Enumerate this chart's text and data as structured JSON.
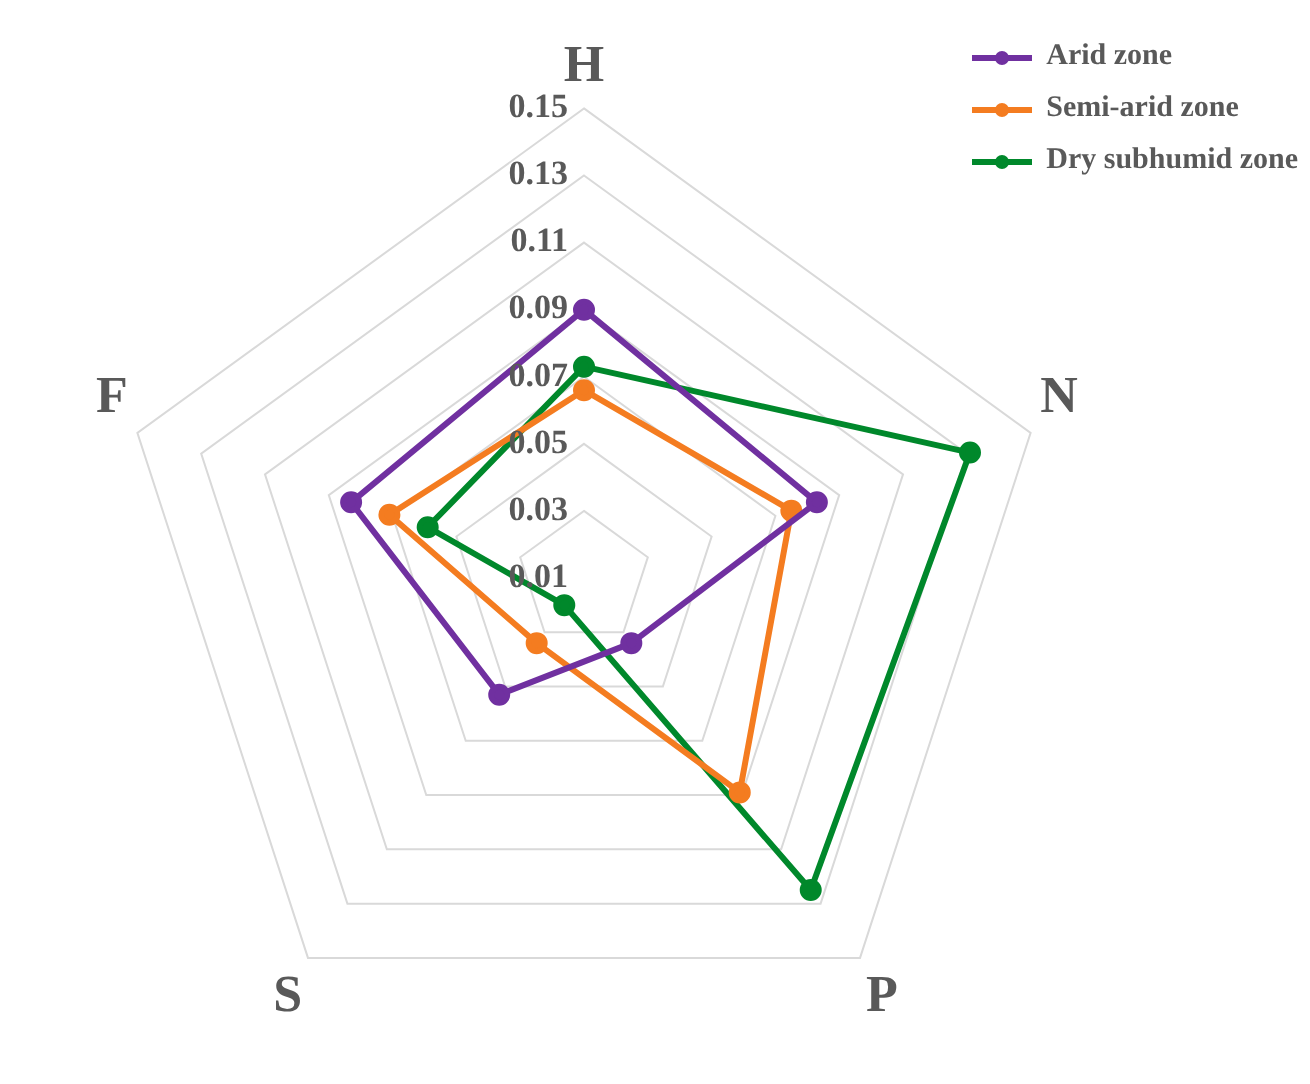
{
  "chart_data": {
    "type": "radar",
    "categories": [
      "H",
      "N",
      "P",
      "S",
      "F"
    ],
    "series": [
      {
        "name": "Arid zone",
        "color": "#7030a0",
        "values": [
          0.09,
          0.083,
          0.034,
          0.053,
          0.083
        ]
      },
      {
        "name": "Semi-arid zone",
        "color": "#f47c20",
        "values": [
          0.066,
          0.075,
          0.089,
          0.034,
          0.071
        ]
      },
      {
        "name": "Dry subhumid zone",
        "color": "#00882b",
        "values": [
          0.073,
          0.131,
          0.125,
          0.02,
          0.059
        ]
      }
    ],
    "ylim": [
      0.01,
      0.15
    ],
    "yticks": [
      0.01,
      0.03,
      0.05,
      0.07,
      0.09,
      0.11,
      0.13,
      0.15
    ],
    "grid": true,
    "legend": "top right",
    "marker": "circle"
  }
}
